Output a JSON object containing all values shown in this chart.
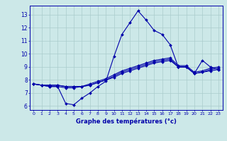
{
  "title": "Graphe des températures (°c)",
  "background_color": "#cce8e8",
  "grid_color": "#aacccc",
  "line_color": "#0000aa",
  "x_labels": [
    0,
    1,
    2,
    3,
    4,
    5,
    6,
    7,
    8,
    9,
    10,
    11,
    12,
    13,
    14,
    15,
    16,
    17,
    18,
    19,
    20,
    21,
    22,
    23
  ],
  "ylim": [
    5.7,
    13.7
  ],
  "yticks": [
    6,
    7,
    8,
    9,
    10,
    11,
    12,
    13
  ],
  "series": [
    [
      7.7,
      7.6,
      7.5,
      7.5,
      6.2,
      6.1,
      6.6,
      7.0,
      7.5,
      7.9,
      9.8,
      11.5,
      12.4,
      13.3,
      12.6,
      11.8,
      11.5,
      10.7,
      9.0,
      9.0,
      8.5,
      9.5,
      9.0,
      8.8
    ],
    [
      7.7,
      7.6,
      7.5,
      7.5,
      7.4,
      7.4,
      7.5,
      7.6,
      7.8,
      8.0,
      8.3,
      8.6,
      8.8,
      9.0,
      9.2,
      9.4,
      9.5,
      9.6,
      9.0,
      9.0,
      8.5,
      8.6,
      8.7,
      8.8
    ],
    [
      7.7,
      7.6,
      7.6,
      7.6,
      7.5,
      7.5,
      7.5,
      7.6,
      7.8,
      8.0,
      8.2,
      8.5,
      8.7,
      8.9,
      9.1,
      9.3,
      9.4,
      9.5,
      9.0,
      9.0,
      8.5,
      8.6,
      8.8,
      8.9
    ],
    [
      7.7,
      7.6,
      7.6,
      7.6,
      7.5,
      7.5,
      7.5,
      7.7,
      7.9,
      8.1,
      8.4,
      8.7,
      8.9,
      9.1,
      9.3,
      9.5,
      9.6,
      9.7,
      9.1,
      9.1,
      8.6,
      8.7,
      8.9,
      9.0
    ]
  ]
}
